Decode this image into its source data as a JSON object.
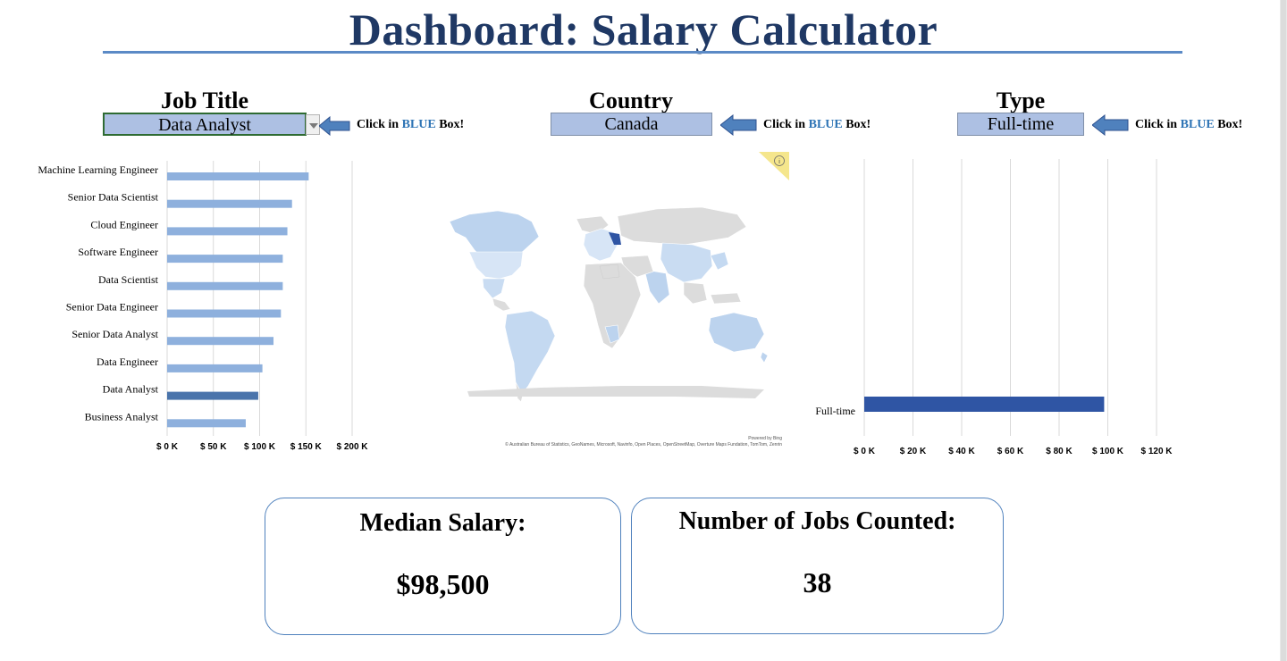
{
  "title": "Dashboard: Salary Calculator",
  "selectors": {
    "job": {
      "label": "Job Title",
      "value": "Data Analyst"
    },
    "country": {
      "label": "Country",
      "value": "Canada"
    },
    "type": {
      "label": "Type",
      "value": "Full-time"
    }
  },
  "hint": {
    "prefix": "Click in ",
    "blue": "BLUE",
    "suffix": " Box!"
  },
  "colors": {
    "title": "#1f3864",
    "bar": "#8eb0dd",
    "bar_selected": "#4a74ab",
    "type_bar": "#2f55a4",
    "box_fill": "#adc0e3"
  },
  "map": {
    "credit_powered": "Powered by Bing",
    "credit_sources": "© Australian Bureau of Statistics, GeoNames, Microsoft, Navinfo, Open Places, OpenStreetMap, Overture Maps Fundation, TomTom, Zenrin",
    "info_icon": "info-icon"
  },
  "chart_data": [
    {
      "type": "bar",
      "orientation": "horizontal",
      "categories": [
        "Machine Learning Engineer",
        "Senior Data Scientist",
        "Cloud Engineer",
        "Software Engineer",
        "Data Scientist",
        "Senior Data Engineer",
        "Senior Data Analyst",
        "Data Engineer",
        "Data Analyst",
        "Business Analyst"
      ],
      "values": [
        153000,
        135000,
        130000,
        125000,
        125000,
        123000,
        115000,
        103000,
        98500,
        85000
      ],
      "highlight": "Data Analyst",
      "xlim": [
        0,
        200000
      ],
      "xticks": [
        0,
        50000,
        100000,
        150000,
        200000
      ],
      "xtick_labels": [
        "$ 0 K",
        "$ 50 K",
        "$ 100 K",
        "$ 150 K",
        "$ 200 K"
      ],
      "grid": true
    },
    {
      "type": "bar",
      "orientation": "horizontal",
      "categories": [
        "Full-time"
      ],
      "values": [
        98500
      ],
      "xlim": [
        0,
        120000
      ],
      "xticks": [
        0,
        20000,
        40000,
        60000,
        80000,
        100000,
        120000
      ],
      "xtick_labels": [
        "$ 0 K",
        "$ 20 K",
        "$ 40 K",
        "$ 60 K",
        "$ 80 K",
        "$ 100 K",
        "$ 120 K"
      ],
      "grid": true
    }
  ],
  "kpis": {
    "median": {
      "label": "Median Salary:",
      "value": "$98,500"
    },
    "count": {
      "label": "Number of Jobs Counted:",
      "value": "38"
    }
  }
}
